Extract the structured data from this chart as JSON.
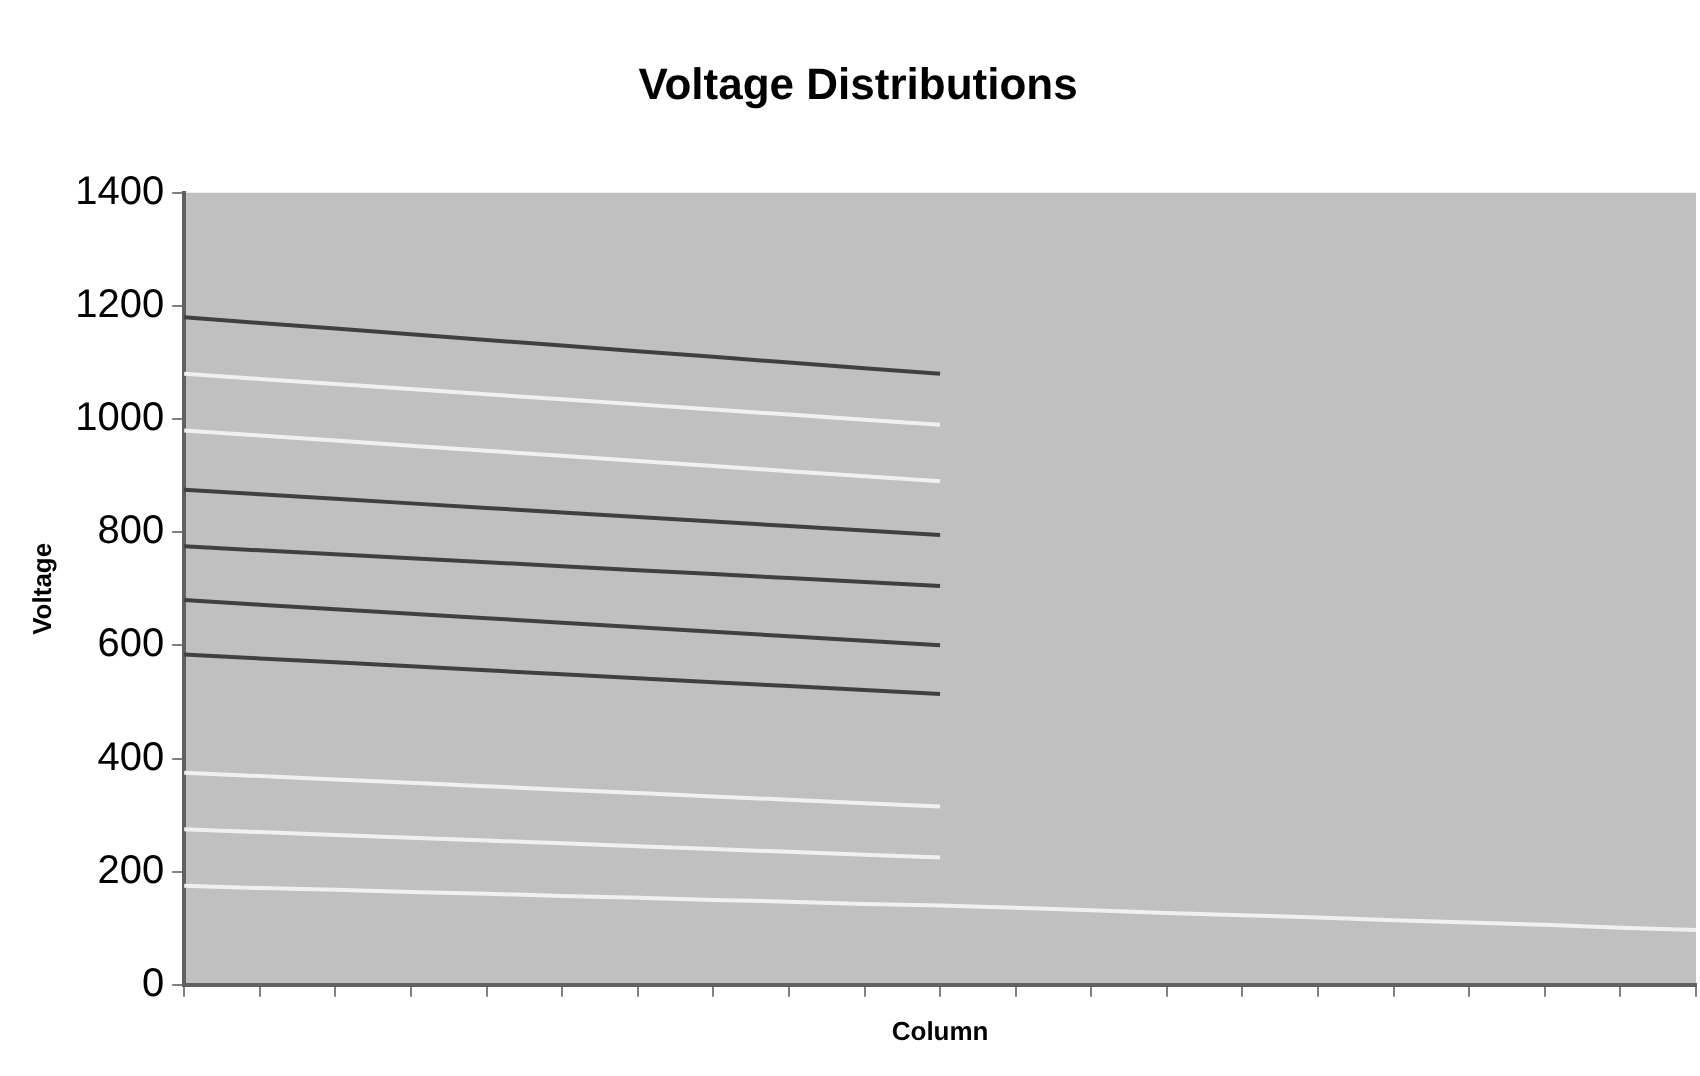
{
  "chart_data": {
    "type": "line",
    "title": "Voltage Distributions",
    "xlabel": "Column",
    "ylabel": "Voltage",
    "categories": [
      null,
      null,
      null,
      null,
      null,
      null,
      null,
      null,
      null,
      null,
      null,
      null,
      null,
      null,
      null,
      null,
      null,
      null,
      null,
      null,
      null
    ],
    "ylim": [
      0,
      1400
    ],
    "yticks": [
      0,
      200,
      400,
      600,
      800,
      1000,
      1200,
      1400
    ],
    "grid": false,
    "legend": false,
    "marker": "none",
    "line_style": "solid",
    "tick_labels": "y",
    "series": [
      {
        "color": "#404040",
        "values": [
          1180,
          1170,
          1160,
          1150,
          1140,
          1130,
          1120,
          1110,
          1100,
          1090,
          1080,
          null,
          null,
          null,
          null,
          null,
          null,
          null,
          null,
          null,
          null
        ]
      },
      {
        "color": "#f0f0f0",
        "values": [
          1080,
          1071,
          1062,
          1053,
          1044,
          1035,
          1026,
          1017,
          1008,
          999,
          990,
          null,
          null,
          null,
          null,
          null,
          null,
          null,
          null,
          null,
          null
        ]
      },
      {
        "color": "#f0f0f0",
        "values": [
          980,
          971,
          962,
          953,
          944,
          935,
          926,
          917,
          908,
          899,
          890,
          null,
          null,
          null,
          null,
          null,
          null,
          null,
          null,
          null,
          null
        ]
      },
      {
        "color": "#404040",
        "values": [
          875,
          867,
          859,
          851,
          843,
          835,
          827,
          819,
          811,
          803,
          795,
          null,
          null,
          null,
          null,
          null,
          null,
          null,
          null,
          null,
          null
        ]
      },
      {
        "color": "#404040",
        "values": [
          775,
          768,
          761,
          754,
          747,
          740,
          733,
          726,
          719,
          712,
          705,
          null,
          null,
          null,
          null,
          null,
          null,
          null,
          null,
          null,
          null
        ]
      },
      {
        "color": "#404040",
        "values": [
          680,
          672,
          664,
          656,
          648,
          640,
          632,
          624,
          616,
          608,
          600,
          null,
          null,
          null,
          null,
          null,
          null,
          null,
          null,
          null,
          null
        ]
      },
      {
        "color": "#404040",
        "values": [
          584,
          577,
          570,
          563,
          556,
          549,
          542,
          535,
          528,
          521,
          514,
          null,
          null,
          null,
          null,
          null,
          null,
          null,
          null,
          null,
          null
        ]
      },
      {
        "color": "#f0f0f0",
        "values": [
          375,
          369,
          363,
          357,
          351,
          345,
          339,
          333,
          327,
          321,
          315,
          null,
          null,
          null,
          null,
          null,
          null,
          null,
          null,
          null,
          null
        ]
      },
      {
        "color": "#f0f0f0",
        "values": [
          275,
          270,
          265,
          260,
          255,
          250,
          245,
          240,
          235,
          230,
          225,
          null,
          null,
          null,
          null,
          null,
          null,
          null,
          null,
          null,
          null
        ]
      },
      {
        "color": "#f0f0f0",
        "values": [
          175,
          171,
          168,
          164,
          161,
          157,
          154,
          150,
          147,
          143,
          140,
          136,
          132,
          127,
          123,
          119,
          114,
          110,
          106,
          101,
          97
        ]
      }
    ]
  }
}
